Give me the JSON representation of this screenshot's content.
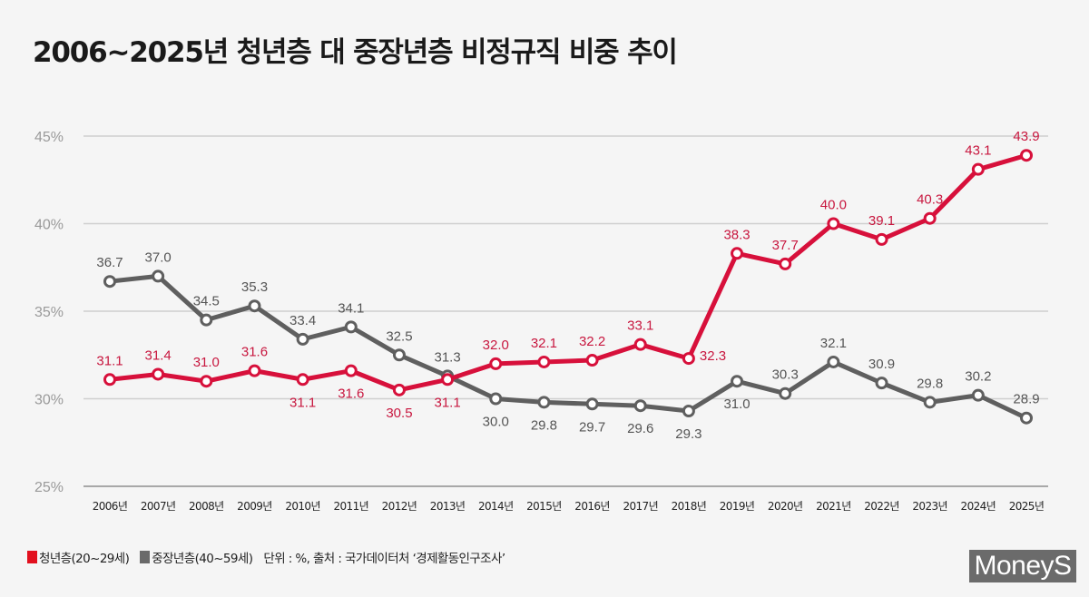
{
  "header": {
    "title": "2006~2025년 청년층 대 중장년층 비정규직 비중 추이"
  },
  "legend": {
    "youth_label": "청년층(20~29세)",
    "middle_label": "중장년층(40~59세)",
    "note": "단위 : %, 출처 : 국가데이터처 ‘경제활동인구조사’"
  },
  "branding": {
    "logo_text": "MoneyS"
  },
  "colors": {
    "youth": "#d7103b",
    "middle": "#5f5f5f",
    "grid": "#cfcfcf",
    "tick": "#9a9a9a"
  },
  "chart_data": {
    "type": "line",
    "title": "2006~2025년 청년층 대 중장년층 비정규직 비중 추이",
    "xlabel": "",
    "ylabel": "",
    "unit": "%",
    "categories": [
      "2006년",
      "2007년",
      "2008년",
      "2009년",
      "2010년",
      "2011년",
      "2012년",
      "2013년",
      "2014년",
      "2015년",
      "2016년",
      "2017년",
      "2018년",
      "2019년",
      "2020년",
      "2021년",
      "2022년",
      "2023년",
      "2024년",
      "2025년"
    ],
    "ylim": [
      25,
      45
    ],
    "yticks": [
      25,
      30,
      35,
      40,
      45
    ],
    "ytick_labels": [
      "25%",
      "30%",
      "35%",
      "40%",
      "45%"
    ],
    "grid": true,
    "legend_position": "bottom-left",
    "series": [
      {
        "name": "청년층(20~29세)",
        "key": "youth",
        "values": [
          31.1,
          31.4,
          31.0,
          31.6,
          31.1,
          31.6,
          30.5,
          31.1,
          32.0,
          32.1,
          32.2,
          33.1,
          32.3,
          38.3,
          37.7,
          40.0,
          39.1,
          40.3,
          43.1,
          43.9
        ],
        "label_pos": [
          "above",
          "above",
          "above",
          "above",
          "below",
          "below",
          "below",
          "below",
          "above",
          "above",
          "above",
          "above",
          "right",
          "above",
          "above",
          "above",
          "above",
          "above",
          "above",
          "above"
        ]
      },
      {
        "name": "중장년층(40~59세)",
        "key": "middle",
        "values": [
          36.7,
          37.0,
          34.5,
          35.3,
          33.4,
          34.1,
          32.5,
          31.3,
          30.0,
          29.8,
          29.7,
          29.6,
          29.3,
          31.0,
          30.3,
          32.1,
          30.9,
          29.8,
          30.2,
          28.9
        ],
        "label_pos": [
          "above",
          "above",
          "above",
          "above",
          "above",
          "above",
          "above",
          "above",
          "below",
          "below",
          "below",
          "below",
          "below",
          "below",
          "above",
          "above",
          "above",
          "above",
          "above",
          "above"
        ]
      }
    ]
  }
}
